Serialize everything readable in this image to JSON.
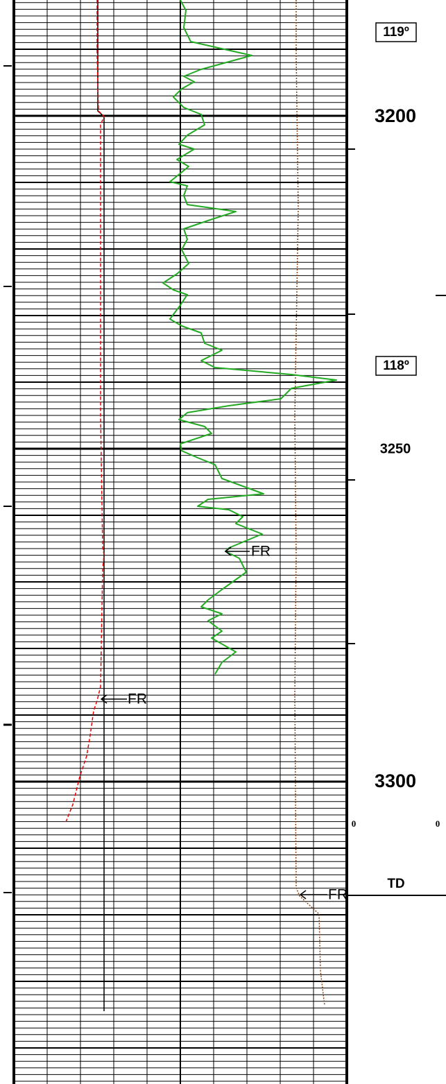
{
  "temperatures": [
    "119º",
    "118º"
  ],
  "depths": [
    "3200",
    "3250",
    "3300"
  ],
  "scale_zeros": [
    "0",
    "0"
  ],
  "td_label": "TD",
  "fr_markers": [
    "FR",
    "FR",
    "FR"
  ]
}
